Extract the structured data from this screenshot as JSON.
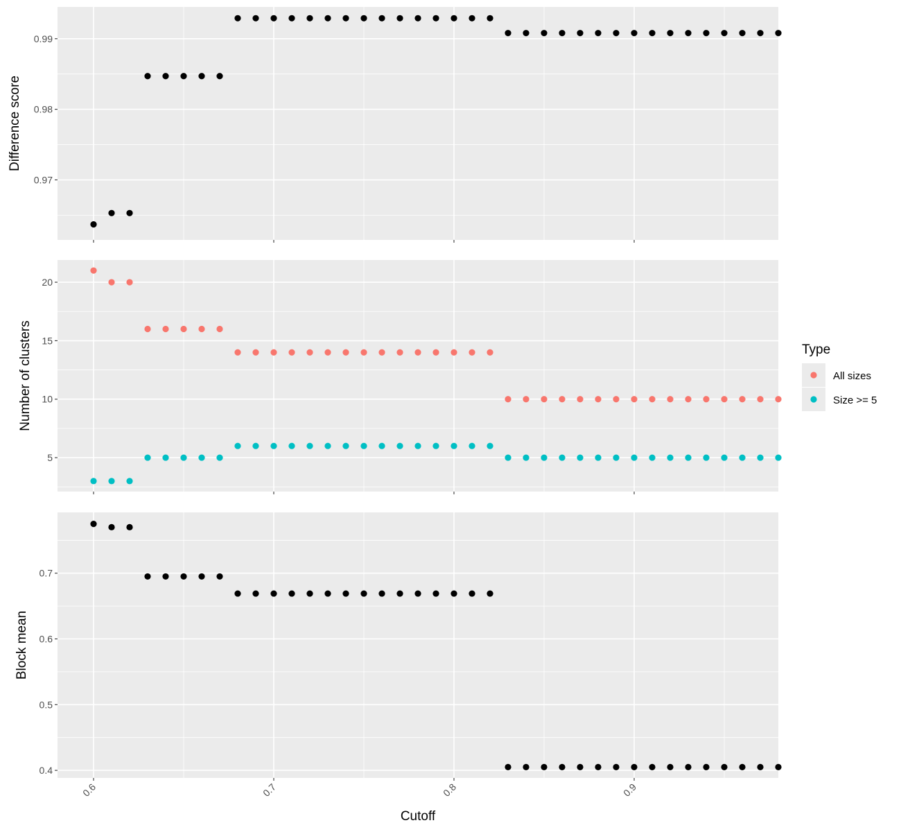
{
  "chart_data": {
    "type": "scatter",
    "xlabel": "Cutoff",
    "x_ticks": [
      0.6,
      0.7,
      0.8,
      0.9
    ],
    "x_tick_labels": [
      "0.6",
      "0.7",
      "0.8",
      "0.9"
    ],
    "xlim": [
      0.58,
      0.98
    ],
    "grid": true,
    "legend_placement": "right",
    "legend": {
      "title": "Type",
      "entries": [
        {
          "label": "All sizes",
          "color": "#F8766D"
        },
        {
          "label": "Size >= 5",
          "color": "#00BFC4"
        }
      ]
    },
    "x": [
      0.6,
      0.61,
      0.62,
      0.63,
      0.64,
      0.65,
      0.66,
      0.67,
      0.68,
      0.69,
      0.7,
      0.71,
      0.72,
      0.73,
      0.74,
      0.75,
      0.76,
      0.77,
      0.78,
      0.79,
      0.8,
      0.81,
      0.82,
      0.83,
      0.84,
      0.85,
      0.86,
      0.87,
      0.88,
      0.89,
      0.9,
      0.91,
      0.92,
      0.93,
      0.94,
      0.95,
      0.96,
      0.97,
      0.98
    ],
    "panels": [
      {
        "ylabel": "Difference score",
        "ylim": [
          0.9615,
          0.9945
        ],
        "y_ticks": [
          0.97,
          0.98,
          0.99
        ],
        "y_tick_labels": [
          "0.97",
          "0.98",
          "0.99"
        ],
        "series": [
          {
            "color": "#000000",
            "values": [
              0.9637,
              0.9653,
              0.9653,
              0.9847,
              0.9847,
              0.9847,
              0.9847,
              0.9847,
              0.9929,
              0.9929,
              0.9929,
              0.9929,
              0.9929,
              0.9929,
              0.9929,
              0.9929,
              0.9929,
              0.9929,
              0.9929,
              0.9929,
              0.9929,
              0.9929,
              0.9929,
              0.9908,
              0.9908,
              0.9908,
              0.9908,
              0.9908,
              0.9908,
              0.9908,
              0.9908,
              0.9908,
              0.9908,
              0.9908,
              0.9908,
              0.9908,
              0.9908,
              0.9908,
              0.9908
            ]
          }
        ]
      },
      {
        "ylabel": "Number of clusters",
        "ylim": [
          2.1,
          21.9
        ],
        "y_ticks": [
          5,
          10,
          15,
          20
        ],
        "y_tick_labels": [
          "5",
          "10",
          "15",
          "20"
        ],
        "series": [
          {
            "name": "All sizes",
            "color": "#F8766D",
            "values": [
              21,
              20,
              20,
              16,
              16,
              16,
              16,
              16,
              14,
              14,
              14,
              14,
              14,
              14,
              14,
              14,
              14,
              14,
              14,
              14,
              14,
              14,
              14,
              10,
              10,
              10,
              10,
              10,
              10,
              10,
              10,
              10,
              10,
              10,
              10,
              10,
              10,
              10,
              10
            ]
          },
          {
            "name": "Size >= 5",
            "color": "#00BFC4",
            "values": [
              3,
              3,
              3,
              5,
              5,
              5,
              5,
              5,
              6,
              6,
              6,
              6,
              6,
              6,
              6,
              6,
              6,
              6,
              6,
              6,
              6,
              6,
              6,
              5,
              5,
              5,
              5,
              5,
              5,
              5,
              5,
              5,
              5,
              5,
              5,
              5,
              5,
              5,
              5
            ]
          }
        ]
      },
      {
        "ylabel": "Block mean",
        "ylim": [
          0.3885,
          0.7925
        ],
        "y_ticks": [
          0.4,
          0.5,
          0.6,
          0.7
        ],
        "y_tick_labels": [
          "0.4",
          "0.5",
          "0.6",
          "0.7"
        ],
        "series": [
          {
            "color": "#000000",
            "values": [
              0.775,
              0.77,
              0.77,
              0.695,
              0.695,
              0.695,
              0.695,
              0.695,
              0.669,
              0.669,
              0.669,
              0.669,
              0.669,
              0.669,
              0.669,
              0.669,
              0.669,
              0.669,
              0.669,
              0.669,
              0.669,
              0.669,
              0.669,
              0.405,
              0.405,
              0.405,
              0.405,
              0.405,
              0.405,
              0.405,
              0.405,
              0.405,
              0.405,
              0.405,
              0.405,
              0.405,
              0.405,
              0.405,
              0.405
            ]
          }
        ]
      }
    ]
  }
}
